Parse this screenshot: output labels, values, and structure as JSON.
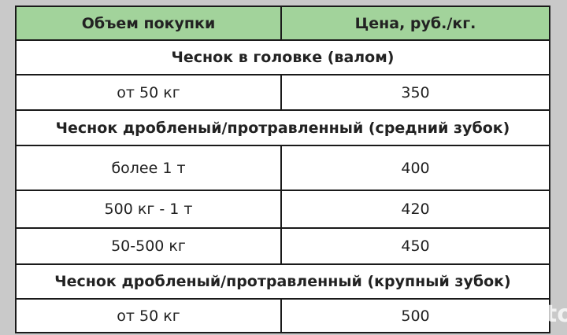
{
  "header": {
    "col1": "Объем покупки",
    "col2": "Цена, руб./кг."
  },
  "rows": [
    {
      "type": "section",
      "label": "Чеснок в головке (валом)"
    },
    {
      "type": "item",
      "volume": "от 50 кг",
      "price": "350"
    },
    {
      "type": "section",
      "label": "Чеснок дробленый/протравленный (средний зубок)"
    },
    {
      "type": "item",
      "volume": "более 1 т",
      "price": "400"
    },
    {
      "type": "item",
      "volume": "500 кг - 1 т",
      "price": "420"
    },
    {
      "type": "item",
      "volume": "50-500 кг",
      "price": "450"
    },
    {
      "type": "section",
      "label": "Чеснок дробленый/протравленный (крупный зубок)"
    },
    {
      "type": "item",
      "volume": "от 50 кг",
      "price": "500"
    }
  ],
  "colors": {
    "header_bg": "#a2d39b",
    "background": "#c9c9c9"
  },
  "watermark": "Avito"
}
